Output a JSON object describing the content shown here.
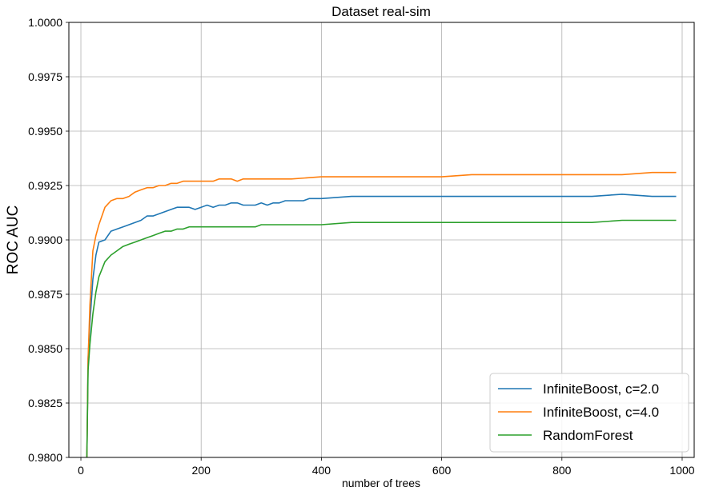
{
  "chart_data": {
    "type": "line",
    "title": "Dataset real-sim",
    "xlabel": "number of trees",
    "ylabel": "ROC AUC",
    "xlim": [
      -20,
      1020
    ],
    "ylim": [
      0.98,
      1.0
    ],
    "xticks": [
      0,
      200,
      400,
      600,
      800,
      1000
    ],
    "xtick_labels": [
      "0",
      "200",
      "400",
      "600",
      "800",
      "1000"
    ],
    "yticks": [
      0.98,
      0.9825,
      0.985,
      0.9875,
      0.99,
      0.9925,
      0.995,
      0.9975,
      1.0
    ],
    "ytick_labels": [
      "0.9800",
      "0.9825",
      "0.9850",
      "0.9875",
      "0.9900",
      "0.9925",
      "0.9950",
      "0.9975",
      "1.0000"
    ],
    "grid": true,
    "legend_position": "lower-right",
    "series": [
      {
        "name": "InfiniteBoost, c=2.0",
        "color": "#1f77b4",
        "x": [
          10,
          12,
          15,
          20,
          25,
          30,
          40,
          50,
          60,
          70,
          80,
          90,
          100,
          110,
          120,
          130,
          140,
          150,
          160,
          170,
          180,
          190,
          200,
          210,
          220,
          230,
          240,
          250,
          260,
          270,
          280,
          290,
          300,
          310,
          320,
          330,
          340,
          350,
          360,
          370,
          380,
          390,
          400,
          450,
          500,
          550,
          600,
          650,
          700,
          750,
          800,
          850,
          900,
          950,
          990
        ],
        "y": [
          0.98,
          0.9845,
          0.9862,
          0.9882,
          0.9893,
          0.9899,
          0.99,
          0.9904,
          0.9905,
          0.9906,
          0.9907,
          0.9908,
          0.9909,
          0.9911,
          0.9911,
          0.9912,
          0.9913,
          0.9914,
          0.9915,
          0.9915,
          0.9915,
          0.9914,
          0.9915,
          0.9916,
          0.9915,
          0.9916,
          0.9916,
          0.9917,
          0.9917,
          0.9916,
          0.9916,
          0.9916,
          0.9917,
          0.9916,
          0.9917,
          0.9917,
          0.9918,
          0.9918,
          0.9918,
          0.9918,
          0.9919,
          0.9919,
          0.9919,
          0.992,
          0.992,
          0.992,
          0.992,
          0.992,
          0.992,
          0.992,
          0.992,
          0.992,
          0.9921,
          0.992,
          0.992
        ]
      },
      {
        "name": "InfiniteBoost, c=4.0",
        "color": "#ff7f0e",
        "x": [
          10,
          12,
          15,
          20,
          25,
          30,
          40,
          50,
          60,
          70,
          80,
          90,
          100,
          110,
          120,
          130,
          140,
          150,
          160,
          170,
          180,
          190,
          200,
          210,
          220,
          230,
          240,
          250,
          260,
          270,
          280,
          290,
          300,
          350,
          400,
          450,
          500,
          550,
          600,
          650,
          700,
          750,
          800,
          850,
          900,
          950,
          990
        ],
        "y": [
          0.98,
          0.9845,
          0.987,
          0.9895,
          0.9902,
          0.9907,
          0.9915,
          0.9918,
          0.9919,
          0.9919,
          0.992,
          0.9922,
          0.9923,
          0.9924,
          0.9924,
          0.9925,
          0.9925,
          0.9926,
          0.9926,
          0.9927,
          0.9927,
          0.9927,
          0.9927,
          0.9927,
          0.9927,
          0.9928,
          0.9928,
          0.9928,
          0.9927,
          0.9928,
          0.9928,
          0.9928,
          0.9928,
          0.9928,
          0.9929,
          0.9929,
          0.9929,
          0.9929,
          0.9929,
          0.993,
          0.993,
          0.993,
          0.993,
          0.993,
          0.993,
          0.9931,
          0.9931
        ]
      },
      {
        "name": "RandomForest",
        "color": "#2ca02c",
        "x": [
          10,
          12,
          15,
          20,
          25,
          30,
          40,
          50,
          60,
          70,
          80,
          90,
          100,
          110,
          120,
          130,
          140,
          150,
          160,
          170,
          180,
          190,
          200,
          210,
          220,
          230,
          240,
          250,
          260,
          270,
          280,
          290,
          300,
          350,
          400,
          450,
          500,
          550,
          600,
          650,
          700,
          750,
          800,
          850,
          900,
          950,
          990
        ],
        "y": [
          0.98,
          0.984,
          0.9852,
          0.9866,
          0.9876,
          0.9883,
          0.989,
          0.9893,
          0.9895,
          0.9897,
          0.9898,
          0.9899,
          0.99,
          0.9901,
          0.9902,
          0.9903,
          0.9904,
          0.9904,
          0.9905,
          0.9905,
          0.9906,
          0.9906,
          0.9906,
          0.9906,
          0.9906,
          0.9906,
          0.9906,
          0.9906,
          0.9906,
          0.9906,
          0.9906,
          0.9906,
          0.9907,
          0.9907,
          0.9907,
          0.9908,
          0.9908,
          0.9908,
          0.9908,
          0.9908,
          0.9908,
          0.9908,
          0.9908,
          0.9908,
          0.9909,
          0.9909,
          0.9909
        ]
      }
    ]
  }
}
